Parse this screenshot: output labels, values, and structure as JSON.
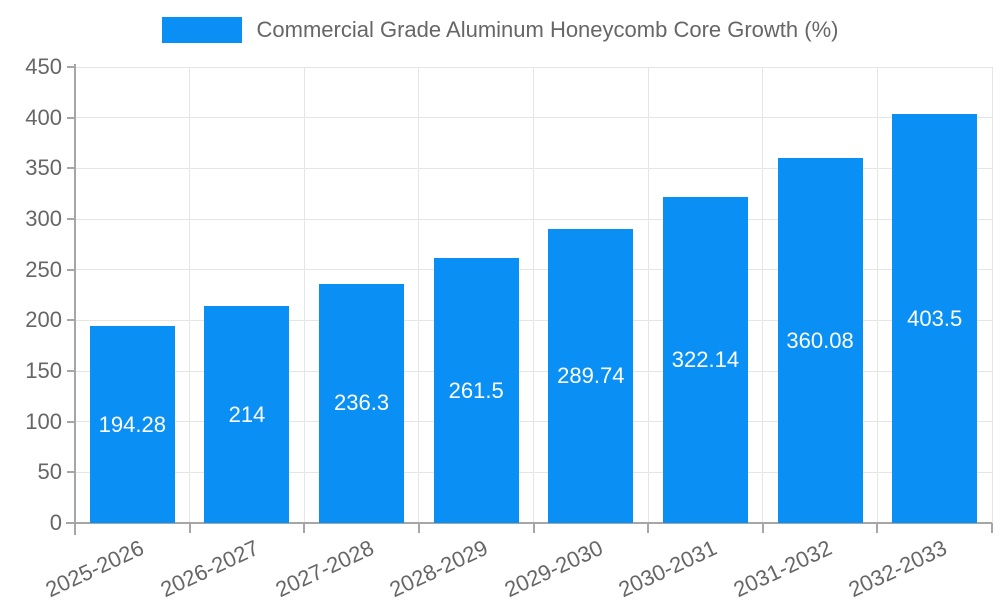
{
  "chart_data": {
    "type": "bar",
    "title": "Commercial Grade Aluminum Honeycomb Core Growth (%)",
    "categories": [
      "2025-2026",
      "2026-2027",
      "2027-2028",
      "2028-2029",
      "2029-2030",
      "2030-2031",
      "2031-2032",
      "2032-2033"
    ],
    "values": [
      194.28,
      214,
      236.3,
      261.5,
      289.74,
      322.14,
      360.08,
      403.5
    ],
    "value_labels": [
      "194.28",
      "214",
      "236.3",
      "261.5",
      "289.74",
      "322.14",
      "360.08",
      "403.5"
    ],
    "xlabel": "",
    "ylabel": "",
    "ylim": [
      0,
      450
    ],
    "yticks": [
      0,
      50,
      100,
      150,
      200,
      250,
      300,
      350,
      400,
      450
    ],
    "grid": true,
    "legend_position": "top-center",
    "colors": {
      "bar": "#0a90f5",
      "text": "#666666",
      "axis": "#a6a6a6",
      "grid": "#e5e5e5",
      "value_label": "#ffffff",
      "background": "#ffffff"
    }
  }
}
